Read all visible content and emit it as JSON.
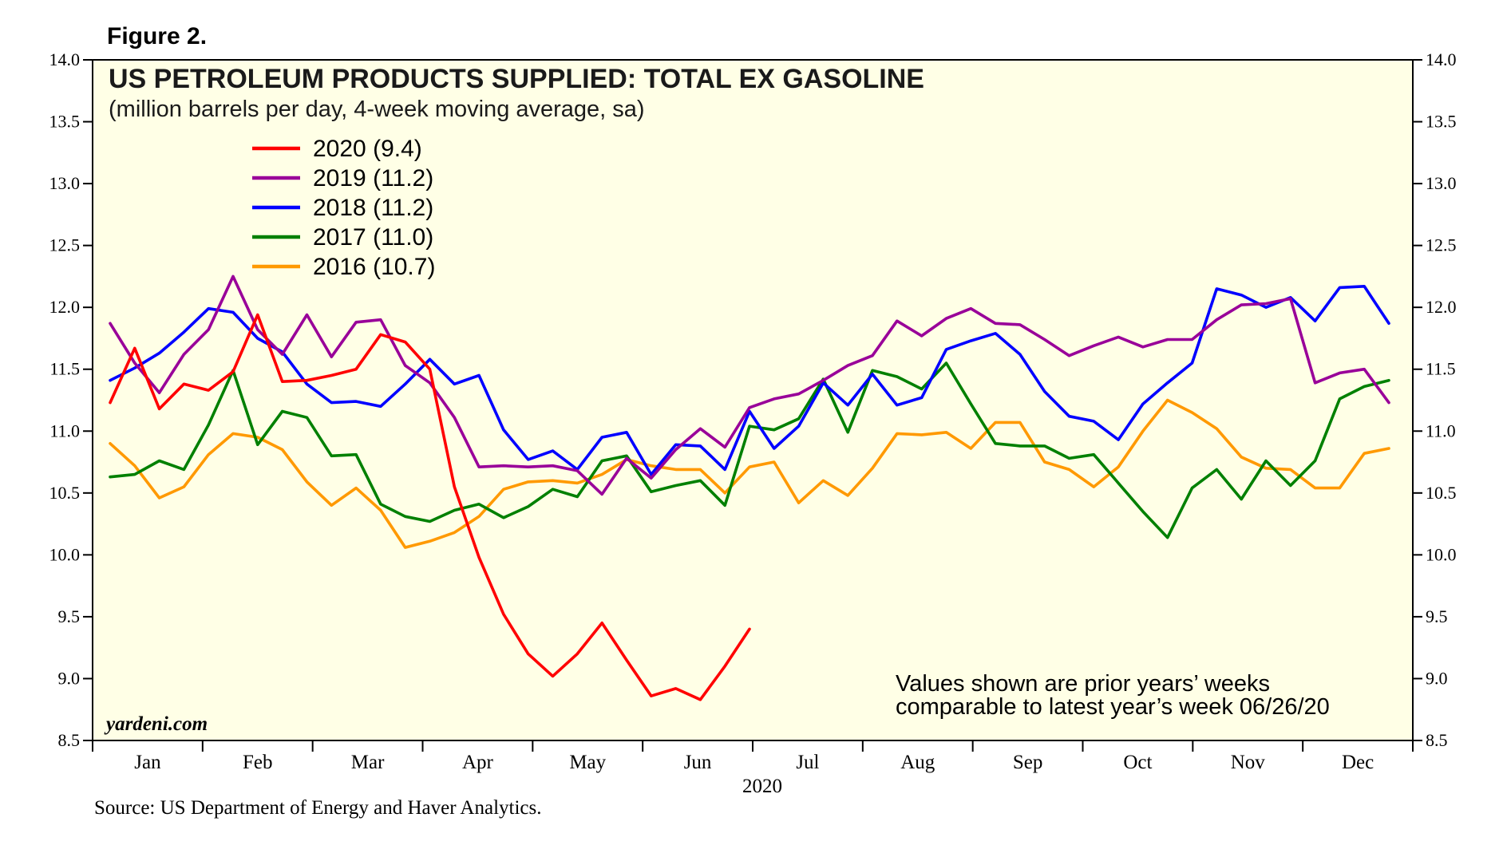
{
  "figure_label": "Figure 2.",
  "chart_data": {
    "type": "line",
    "title": "US PETROLEUM PRODUCTS SUPPLIED: TOTAL EX GASOLINE",
    "subtitle": "(million barrels per day, 4-week moving average, sa)",
    "xlabel": "2020",
    "ylabel": "",
    "ylim": [
      8.5,
      14.0
    ],
    "y_ticks": [
      8.5,
      9.0,
      9.5,
      10.0,
      10.5,
      11.0,
      11.5,
      12.0,
      12.5,
      13.0,
      13.5,
      14.0
    ],
    "y_tick_labels": [
      "8.5",
      "9.0",
      "9.5",
      "10.0",
      "10.5",
      "11.0",
      "11.5",
      "12.0",
      "12.5",
      "13.0",
      "13.5",
      "14.0"
    ],
    "months": [
      "Jan",
      "Feb",
      "Mar",
      "Apr",
      "May",
      "Jun",
      "Jul",
      "Aug",
      "Sep",
      "Oct",
      "Nov",
      "Dec"
    ],
    "weeks_per_year": 52,
    "series": [
      {
        "name": "2020",
        "legend_label": "2020 (9.4)",
        "color": "#ff0000",
        "week_start": 1,
        "values": [
          11.23,
          11.67,
          11.18,
          11.38,
          11.33,
          11.48,
          11.94,
          11.4,
          11.41,
          11.45,
          11.5,
          11.78,
          11.72,
          11.5,
          10.55,
          9.98,
          9.52,
          9.2,
          9.02,
          9.2,
          9.45,
          9.15,
          8.86,
          8.92,
          8.83,
          9.1,
          9.4
        ]
      },
      {
        "name": "2019",
        "legend_label": "2019 (11.2)",
        "color": "#990099",
        "week_start": 1,
        "values": [
          11.87,
          11.55,
          11.31,
          11.62,
          11.82,
          12.25,
          11.82,
          11.62,
          11.94,
          11.6,
          11.88,
          11.9,
          11.53,
          11.39,
          11.11,
          10.71,
          10.72,
          10.71,
          10.72,
          10.68,
          10.49,
          10.78,
          10.62,
          10.85,
          11.02,
          10.87,
          11.19,
          11.26,
          11.3,
          11.41,
          11.53,
          11.61,
          11.89,
          11.77,
          11.91,
          11.99,
          11.87,
          11.86,
          11.74,
          11.61,
          11.69,
          11.76,
          11.68,
          11.74,
          11.74,
          11.9,
          12.02,
          12.03,
          12.07,
          11.39,
          11.47,
          11.5,
          11.23
        ]
      },
      {
        "name": "2018",
        "legend_label": "2018 (11.2)",
        "color": "#0000ff",
        "week_start": 1,
        "values": [
          11.41,
          11.51,
          11.63,
          11.8,
          11.99,
          11.96,
          11.75,
          11.64,
          11.38,
          11.23,
          11.24,
          11.2,
          11.38,
          11.58,
          11.38,
          11.45,
          11.01,
          10.77,
          10.84,
          10.69,
          10.95,
          10.99,
          10.65,
          10.89,
          10.88,
          10.69,
          11.16,
          10.86,
          11.04,
          11.39,
          11.21,
          11.46,
          11.21,
          11.27,
          11.66,
          11.73,
          11.79,
          11.62,
          11.32,
          11.12,
          11.08,
          10.93,
          11.22,
          11.39,
          11.55,
          12.15,
          12.1,
          12.0,
          12.08,
          11.89,
          12.16,
          12.17,
          11.87
        ]
      },
      {
        "name": "2017",
        "legend_label": "2017 (11.0)",
        "color": "#008000",
        "week_start": 1,
        "values": [
          10.63,
          10.65,
          10.76,
          10.69,
          11.05,
          11.49,
          10.89,
          11.16,
          11.11,
          10.8,
          10.81,
          10.41,
          10.31,
          10.27,
          10.36,
          10.41,
          10.3,
          10.39,
          10.53,
          10.47,
          10.76,
          10.8,
          10.51,
          10.56,
          10.6,
          10.4,
          11.04,
          11.01,
          11.1,
          11.42,
          10.99,
          11.49,
          11.44,
          11.34,
          11.55,
          11.22,
          10.9,
          10.88,
          10.88,
          10.78,
          10.81,
          10.58,
          10.35,
          10.14,
          10.54,
          10.69,
          10.45,
          10.76,
          10.56,
          10.76,
          11.26,
          11.36,
          11.41
        ]
      },
      {
        "name": "2016",
        "legend_label": "2016 (10.7)",
        "color": "#ff9900",
        "week_start": 1,
        "values": [
          10.9,
          10.72,
          10.46,
          10.55,
          10.81,
          10.98,
          10.95,
          10.85,
          10.59,
          10.4,
          10.54,
          10.36,
          10.06,
          10.11,
          10.18,
          10.31,
          10.53,
          10.59,
          10.6,
          10.58,
          10.65,
          10.77,
          10.72,
          10.69,
          10.69,
          10.5,
          10.71,
          10.75,
          10.42,
          10.6,
          10.48,
          10.7,
          10.98,
          10.97,
          10.99,
          10.86,
          11.07,
          11.07,
          10.75,
          10.69,
          10.55,
          10.71,
          11.0,
          11.25,
          11.15,
          11.02,
          10.79,
          10.7,
          10.69,
          10.54,
          10.54,
          10.82,
          10.86
        ]
      }
    ],
    "annotations": [
      "Values shown are prior years’ weeks",
      "comparable to latest year’s week 06/26/20"
    ],
    "grid": false,
    "legend_position": "top-left"
  },
  "brand": "yardeni.com",
  "source": "Source: US Department of Energy and Haver Analytics.",
  "colors": {
    "plot_background": "#ffffe6",
    "axis": "#000000"
  }
}
